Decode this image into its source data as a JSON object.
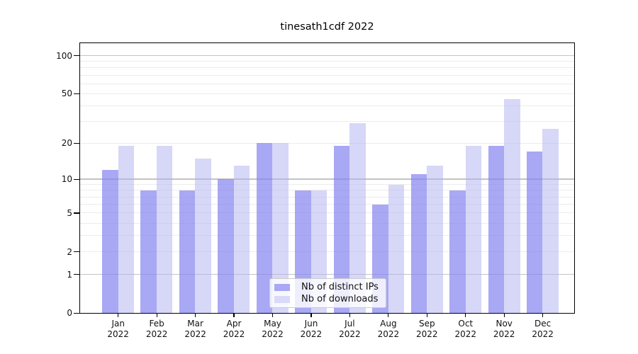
{
  "chart_data": {
    "type": "bar",
    "title": "tinesath1cdf 2022",
    "year": "2022",
    "months": [
      "Jan",
      "Feb",
      "Mar",
      "Apr",
      "May",
      "Jun",
      "Jul",
      "Aug",
      "Sep",
      "Oct",
      "Nov",
      "Dec"
    ],
    "categories": [
      "Jan 2022",
      "Feb 2022",
      "Mar 2022",
      "Apr 2022",
      "May 2022",
      "Jun 2022",
      "Jul 2022",
      "Aug 2022",
      "Sep 2022",
      "Oct 2022",
      "Nov 2022",
      "Dec 2022"
    ],
    "series": [
      {
        "name": "Nb of distinct IPs",
        "values": [
          12,
          8,
          8,
          10,
          20,
          8,
          19,
          6,
          11,
          8,
          19,
          17
        ],
        "color": "#a8a8f4",
        "fill": "rgba(131,131,239,0.70)"
      },
      {
        "name": "Nb of downloads",
        "values": [
          19,
          19,
          15,
          13,
          20,
          8,
          29,
          9,
          13,
          19,
          45,
          26
        ],
        "color": "#d9d9f8",
        "fill": "rgba(179,179,241,0.52)"
      }
    ],
    "yscale": "log1p",
    "ylim": [
      0,
      125
    ],
    "y_ticks": [
      0,
      1,
      2,
      5,
      10,
      20,
      50,
      100
    ],
    "y_tick_labels": [
      "0",
      "1",
      "2",
      "5",
      "10",
      "20",
      "50",
      "100"
    ],
    "major_gridlines": [
      1,
      10,
      100
    ],
    "minor_gridlines": [
      2,
      3,
      4,
      5,
      6,
      7,
      8,
      9,
      20,
      30,
      40,
      50,
      60,
      70,
      80,
      90
    ],
    "grid": true,
    "legend_position": "lower center inside",
    "colors": {
      "major_grid": "#c3c3c3",
      "minor_grid": "#ececec",
      "spine": "#000000",
      "tick": "#000000",
      "text": "#111111",
      "legend_border": "#cccccc",
      "legend_bg": "rgba(255,255,255,0.8)"
    }
  }
}
